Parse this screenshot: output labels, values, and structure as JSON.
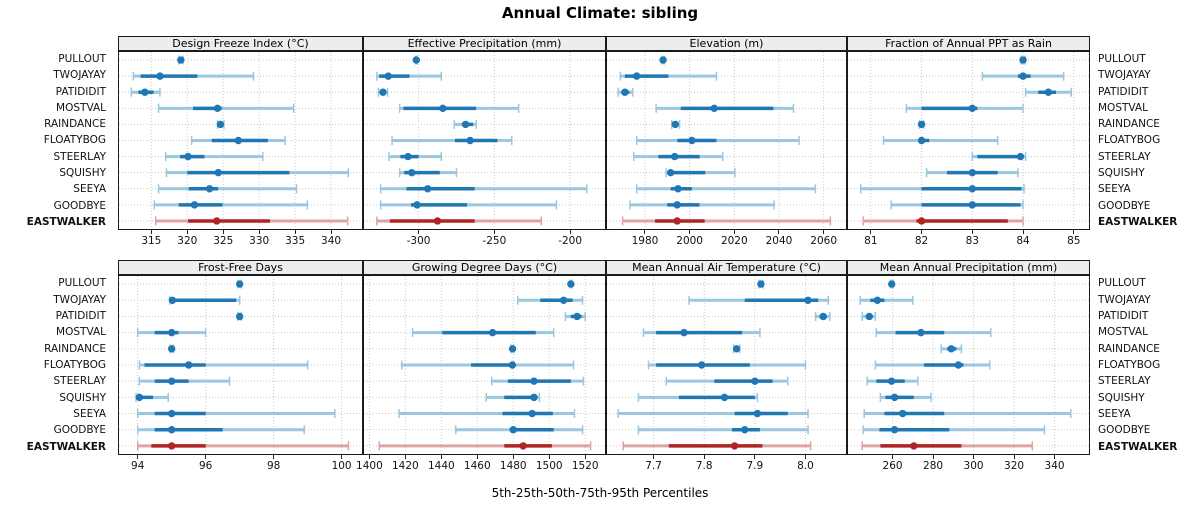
{
  "colors": {
    "series": "#1f77b4",
    "series_light": "#9cc7e0",
    "highlight": "#b02424",
    "highlight_light": "#dfa3a3",
    "strip_bg": "#ededed",
    "grid": "#c9c9c9"
  },
  "chart_data": {
    "type": "dot-interval-trellis",
    "title": "Annual Climate: sibling",
    "caption": "5th-25th-50th-75th-95th Percentiles",
    "percentiles": [
      5,
      25,
      50,
      75,
      95
    ],
    "stations": [
      "PULLOUT",
      "TWOJAYAY",
      "PATIDIDIT",
      "MOSTVAL",
      "RAINDANCE",
      "FLOATYBOG",
      "STEERLAY",
      "SQUISHY",
      "SEEYA",
      "GOODBYE",
      "EASTWALKER"
    ],
    "highlight_station": "EASTWALKER",
    "panels": [
      {
        "title": "Design Freeze Index (°C)",
        "row": 0,
        "col": 0,
        "xlim": [
          310.5,
          344.3
        ],
        "ticks": [
          315,
          320,
          325,
          330,
          335,
          340
        ],
        "tick_labels": [
          "315",
          "320",
          "325",
          "330",
          "335",
          "340"
        ],
        "values": [
          [
            318.8,
            318.95,
            319.1,
            319.25,
            319.4
          ],
          [
            312.5,
            313.5,
            316.2,
            321.4,
            329.2
          ],
          [
            312.2,
            313.2,
            314.1,
            315.3,
            316.2
          ],
          [
            316.0,
            320.8,
            324.2,
            324.8,
            334.8
          ],
          [
            324.2,
            324.4,
            324.6,
            324.9,
            325.1
          ],
          [
            320.6,
            323.4,
            327.1,
            331.2,
            333.6
          ],
          [
            317.0,
            319.0,
            320.1,
            322.4,
            330.5
          ],
          [
            317.1,
            320.0,
            324.3,
            334.2,
            342.4
          ],
          [
            316.0,
            320.2,
            323.1,
            324.3,
            335.2
          ],
          [
            315.4,
            318.8,
            321.0,
            324.9,
            336.7
          ],
          [
            315.6,
            320.1,
            324.1,
            331.5,
            342.3
          ]
        ]
      },
      {
        "title": "Effective Precipitation (mm)",
        "row": 0,
        "col": 1,
        "xlim": [
          -336,
          -177
        ],
        "ticks": [
          -300,
          -250,
          -200
        ],
        "tick_labels": [
          "-300",
          "-250",
          "-200"
        ],
        "values": [
          [
            -302,
            -301.7,
            -301.5,
            -301.3,
            -301
          ],
          [
            -327.5,
            -326,
            -320,
            -306,
            -285
          ],
          [
            -326.5,
            -325.5,
            -323.5,
            -321.5,
            -320.5
          ],
          [
            -312.5,
            -310,
            -284,
            -262,
            -234
          ],
          [
            -276.5,
            -271,
            -269,
            -264,
            -262
          ],
          [
            -317.5,
            -276,
            -266,
            -248,
            -238.5
          ],
          [
            -319.5,
            -312,
            -307,
            -300,
            -285
          ],
          [
            -312.5,
            -309.5,
            -304.5,
            -286,
            -275
          ],
          [
            -325,
            -308,
            -294,
            -263,
            -189
          ],
          [
            -325,
            -305,
            -301,
            -268,
            -209
          ],
          [
            -327.5,
            -319,
            -287.5,
            -263,
            -219
          ]
        ]
      },
      {
        "title": "Elevation (m)",
        "row": 0,
        "col": 2,
        "xlim": [
          1963,
          2070
        ],
        "ticks": [
          1980,
          2000,
          2020,
          2040,
          2060
        ],
        "tick_labels": [
          "1980",
          "2000",
          "2020",
          "2040",
          "2060"
        ],
        "values": [
          [
            1987.6,
            1987.9,
            1988.1,
            1988.4,
            1988.7
          ],
          [
            1969,
            1971,
            1976.3,
            1990.5,
            2012
          ],
          [
            1968,
            1969.5,
            1971,
            1973,
            1974.5
          ],
          [
            1985,
            1996,
            2011,
            2037.5,
            2046.5
          ],
          [
            1992,
            1993,
            1993.6,
            1994.6,
            1995.5
          ],
          [
            1976.3,
            1994.5,
            2001,
            2012,
            2049
          ],
          [
            1975,
            1986,
            1993.3,
            2004.5,
            2014.8
          ],
          [
            1989.5,
            1990.5,
            1991.5,
            2007,
            2020.3
          ],
          [
            1976.3,
            1991.5,
            1994.8,
            2001,
            2056.3
          ],
          [
            1973.3,
            1990,
            1994.4,
            2004.4,
            2037.8
          ],
          [
            1970,
            1984.5,
            1994.4,
            2006.7,
            2063
          ]
        ]
      },
      {
        "title": "Fraction of Annual PPT as Rain",
        "row": 0,
        "col": 3,
        "xlim": [
          80.55,
          85.3
        ],
        "ticks": [
          81,
          82,
          83,
          84,
          85
        ],
        "tick_labels": [
          "81",
          "82",
          "83",
          "84",
          "85"
        ],
        "values": [
          [
            83.96,
            83.98,
            84.0,
            84.02,
            84.04
          ],
          [
            83.2,
            83.9,
            84.0,
            84.15,
            84.8
          ],
          [
            84.05,
            84.3,
            84.5,
            84.65,
            84.95
          ],
          [
            81.7,
            82.0,
            83.0,
            83.1,
            84.0
          ],
          [
            81.96,
            81.98,
            82.0,
            82.02,
            82.04
          ],
          [
            81.25,
            81.95,
            82.0,
            82.15,
            83.5
          ],
          [
            83.0,
            83.1,
            83.95,
            84.0,
            84.05
          ],
          [
            82.1,
            82.5,
            83.0,
            83.5,
            83.9
          ],
          [
            80.8,
            82.0,
            83.0,
            83.97,
            84.02
          ],
          [
            81.4,
            82.0,
            83.0,
            83.95,
            84.0
          ],
          [
            80.85,
            81.9,
            82.0,
            83.7,
            84.0
          ]
        ]
      },
      {
        "title": "Frost-Free Days",
        "row": 1,
        "col": 0,
        "xlim": [
          93.45,
          100.6
        ],
        "ticks": [
          94,
          96,
          98,
          100
        ],
        "tick_labels": [
          "94",
          "96",
          "98",
          "100"
        ],
        "values": [
          [
            96.95,
            96.98,
            97.0,
            97.02,
            97.05
          ],
          [
            94.95,
            95.0,
            95.02,
            96.9,
            97.0
          ],
          [
            96.95,
            96.98,
            97.0,
            97.02,
            97.05
          ],
          [
            94.0,
            94.5,
            95.0,
            95.2,
            96.0
          ],
          [
            94.95,
            94.98,
            95.0,
            95.02,
            95.05
          ],
          [
            94.05,
            94.2,
            95.5,
            96.0,
            99.0
          ],
          [
            94.05,
            94.5,
            95.0,
            95.5,
            96.7
          ],
          [
            93.95,
            94.0,
            94.05,
            94.45,
            94.9
          ],
          [
            94.0,
            94.5,
            95.0,
            96.0,
            99.8
          ],
          [
            94.0,
            94.5,
            95.0,
            96.5,
            98.9
          ],
          [
            94.0,
            94.4,
            95.0,
            96.0,
            100.2
          ]
        ]
      },
      {
        "title": "Growing Degree Days (°C)",
        "row": 1,
        "col": 1,
        "xlim": [
          1397,
          1531
        ],
        "ticks": [
          1400,
          1420,
          1440,
          1460,
          1480,
          1500,
          1520
        ],
        "tick_labels": [
          "1400",
          "1420",
          "1440",
          "1460",
          "1480",
          "1500",
          "1520"
        ],
        "values": [
          [
            1511.5,
            1511.8,
            1512,
            1512.3,
            1512.6
          ],
          [
            1482.5,
            1495,
            1508,
            1513,
            1518.5
          ],
          [
            1509,
            1512,
            1515.5,
            1518,
            1520
          ],
          [
            1424,
            1440.5,
            1468.5,
            1492.5,
            1502.5
          ],
          [
            1478.8,
            1479.2,
            1479.6,
            1480,
            1480.4
          ],
          [
            1418,
            1456.5,
            1479.5,
            1481,
            1513.5
          ],
          [
            1468,
            1477,
            1491.5,
            1512,
            1519
          ],
          [
            1465,
            1475,
            1491.5,
            1493.5,
            1494.5
          ],
          [
            1416.5,
            1474,
            1490.5,
            1502,
            1514
          ],
          [
            1448,
            1478,
            1480,
            1502.5,
            1518.5
          ],
          [
            1405.5,
            1475,
            1485.5,
            1501.5,
            1523
          ]
        ]
      },
      {
        "title": "Mean Annual Air Temperature (°C)",
        "row": 1,
        "col": 2,
        "xlim": [
          7.608,
          8.08
        ],
        "ticks": [
          7.7,
          7.8,
          7.9,
          8.0
        ],
        "tick_labels": [
          "7.7",
          "7.8",
          "7.9",
          "8.0"
        ],
        "values": [
          [
            7.908,
            7.91,
            7.912,
            7.914,
            7.916
          ],
          [
            7.77,
            7.88,
            8.005,
            8.025,
            8.045
          ],
          [
            8.02,
            8.028,
            8.035,
            8.042,
            8.048
          ],
          [
            7.68,
            7.705,
            7.76,
            7.875,
            7.91
          ],
          [
            7.858,
            7.861,
            7.864,
            7.867,
            7.87
          ],
          [
            7.69,
            7.705,
            7.795,
            7.89,
            8.0
          ],
          [
            7.725,
            7.82,
            7.9,
            7.935,
            7.965
          ],
          [
            7.67,
            7.75,
            7.84,
            7.9,
            7.905
          ],
          [
            7.63,
            7.86,
            7.905,
            7.965,
            8.005
          ],
          [
            7.67,
            7.855,
            7.88,
            7.91,
            8.005
          ],
          [
            7.64,
            7.73,
            7.86,
            7.915,
            8.01
          ]
        ]
      },
      {
        "title": "Mean Annual Precipitation (mm)",
        "row": 1,
        "col": 3,
        "xlim": [
          238,
          357
        ],
        "ticks": [
          260,
          280,
          300,
          320,
          340
        ],
        "tick_labels": [
          "260",
          "280",
          "300",
          "320",
          "340"
        ],
        "values": [
          [
            259,
            259.3,
            259.6,
            259.9,
            260.2
          ],
          [
            244,
            249,
            252.5,
            256,
            270
          ],
          [
            245,
            247,
            248.5,
            250,
            251.5
          ],
          [
            252,
            261.5,
            274,
            285.5,
            308.5
          ],
          [
            284,
            287,
            289,
            291.5,
            294
          ],
          [
            251.5,
            275.5,
            292.5,
            295,
            308
          ],
          [
            247.5,
            252,
            259.5,
            266,
            272.5
          ],
          [
            254,
            256.5,
            261,
            270.5,
            279
          ],
          [
            246,
            256,
            265,
            285.5,
            348
          ],
          [
            245.5,
            253.5,
            261,
            288,
            335
          ],
          [
            245,
            254,
            270.5,
            294,
            329
          ]
        ]
      }
    ]
  }
}
